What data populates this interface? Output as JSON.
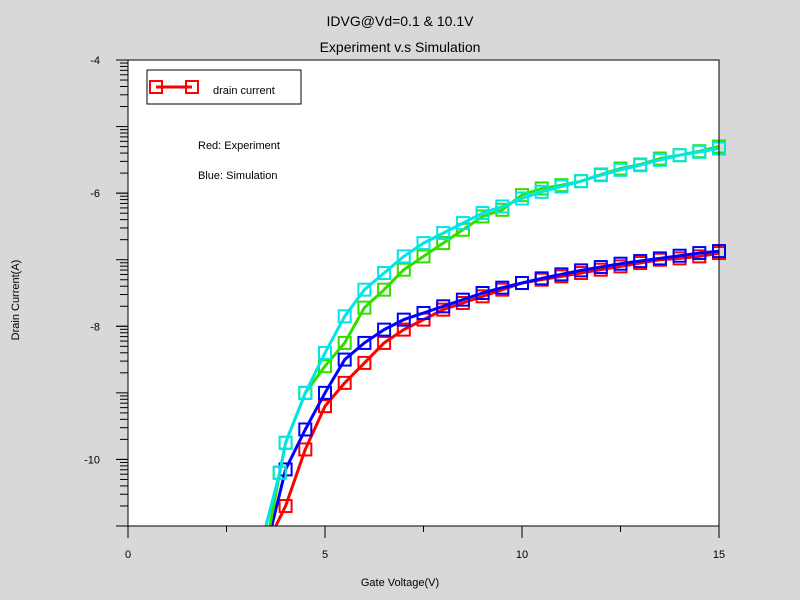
{
  "chart_data": {
    "type": "line",
    "title": "IDVG@Vd=0.1 & 10.1V",
    "subtitle": "Experiment v.s Simulation",
    "xlabel": "Gate Voltage(V)",
    "ylabel": "Drain Current(A)",
    "xlim": [
      0,
      15
    ],
    "ylim": [
      -11,
      -4
    ],
    "xticks": [
      0,
      5,
      10,
      15
    ],
    "yticks": [
      -10,
      -8,
      -6,
      -4
    ],
    "grid": false,
    "legend": {
      "label": "drain current",
      "placement": "top-left"
    },
    "annotations": [
      "Red: Experiment",
      "Blue: Simulation"
    ],
    "series": [
      {
        "color": "#ff0000",
        "x": [
          3.75,
          4.0,
          4.5,
          5.0,
          5.5,
          6.0,
          6.5,
          7.0,
          7.5,
          8.0,
          8.5,
          9.0,
          9.5,
          10.0,
          10.5,
          11.0,
          11.5,
          12.0,
          12.5,
          13.0,
          13.5,
          14.0,
          14.5,
          15.0
        ],
        "y": [
          -11.0,
          -10.7,
          -9.85,
          -9.2,
          -8.85,
          -8.55,
          -8.25,
          -8.05,
          -7.9,
          -7.75,
          -7.65,
          -7.55,
          -7.45,
          -7.35,
          -7.3,
          -7.25,
          -7.2,
          -7.15,
          -7.1,
          -7.05,
          -7.0,
          -6.98,
          -6.95,
          -6.9
        ]
      },
      {
        "color": "#0000ff",
        "x": [
          3.65,
          4.0,
          4.5,
          5.0,
          5.5,
          6.0,
          6.5,
          7.0,
          7.5,
          8.0,
          8.5,
          9.0,
          9.5,
          10.0,
          10.5,
          11.0,
          11.5,
          12.0,
          12.5,
          13.0,
          13.5,
          14.0,
          14.5,
          15.0
        ],
        "y": [
          -11.0,
          -10.15,
          -9.55,
          -9.0,
          -8.5,
          -8.25,
          -8.05,
          -7.9,
          -7.8,
          -7.7,
          -7.6,
          -7.5,
          -7.42,
          -7.35,
          -7.28,
          -7.22,
          -7.16,
          -7.11,
          -7.06,
          -7.02,
          -6.98,
          -6.94,
          -6.9,
          -6.87
        ]
      },
      {
        "color": "#33dd00",
        "x": [
          3.6,
          3.85,
          4.0,
          4.5,
          5.0,
          5.5,
          6.0,
          6.5,
          7.0,
          7.5,
          8.0,
          8.5,
          9.0,
          9.5,
          10.0,
          10.5,
          11.0,
          11.5,
          12.0,
          12.5,
          13.0,
          13.5,
          14.0,
          14.5,
          15.0
        ],
        "y": [
          -11.0,
          -10.2,
          -9.75,
          -9.0,
          -8.6,
          -8.25,
          -7.72,
          -7.45,
          -7.15,
          -6.95,
          -6.75,
          -6.55,
          -6.35,
          -6.25,
          -6.03,
          -5.93,
          -5.88,
          -5.82,
          -5.72,
          -5.63,
          -5.57,
          -5.48,
          -5.43,
          -5.37,
          -5.3
        ]
      },
      {
        "color": "#00e5e5",
        "x": [
          3.5,
          3.85,
          4.0,
          4.5,
          5.0,
          5.5,
          6.0,
          6.5,
          7.0,
          7.5,
          8.0,
          8.5,
          9.0,
          9.5,
          10.0,
          10.5,
          11.0,
          11.5,
          12.0,
          12.5,
          13.0,
          13.5,
          14.0,
          14.5,
          15.0
        ],
        "y": [
          -11.0,
          -10.2,
          -9.75,
          -9.0,
          -8.4,
          -7.85,
          -7.45,
          -7.2,
          -6.95,
          -6.75,
          -6.6,
          -6.45,
          -6.3,
          -6.2,
          -6.08,
          -5.98,
          -5.9,
          -5.82,
          -5.73,
          -5.65,
          -5.58,
          -5.5,
          -5.43,
          -5.38,
          -5.33
        ]
      }
    ]
  }
}
